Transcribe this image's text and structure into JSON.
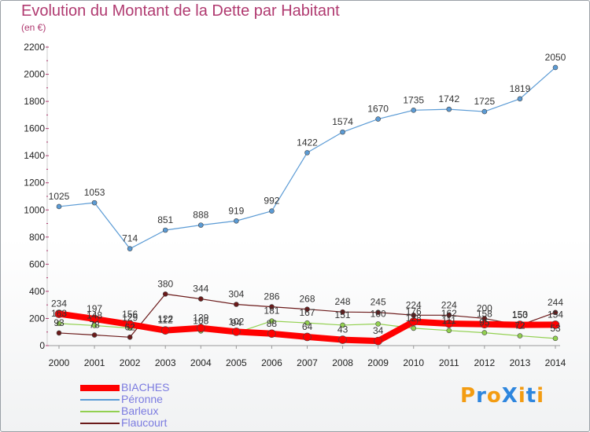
{
  "title": "Evolution du Montant de la Dette par Habitant",
  "subtitle": "(en €)",
  "logo": "ProXiti",
  "colors": {
    "title": "#b03a70",
    "BIACHES": "#ff0000",
    "Péronne": "#5b9bd5",
    "Barleux": "#92d050",
    "Flaucourt": "#6b1a1a"
  },
  "chart_data": {
    "type": "line",
    "title": "Evolution du Montant de la Dette par Habitant",
    "ylabel": "(en €)",
    "x": [
      2000,
      2001,
      2002,
      2003,
      2004,
      2005,
      2006,
      2007,
      2008,
      2009,
      2010,
      2011,
      2012,
      2013,
      2014
    ],
    "ylim": [
      0,
      2200
    ],
    "yticks": [
      0,
      200,
      400,
      600,
      800,
      1000,
      1200,
      1400,
      1600,
      1800,
      2000,
      2200
    ],
    "grid": false,
    "legend": "bottom-left",
    "series": [
      {
        "name": "BIACHES",
        "values": [
          234,
          197,
          156,
          112,
          129,
          102,
          88,
          64,
          43,
          34,
          176,
          162,
          158,
          153,
          154
        ]
      },
      {
        "name": "Péronne",
        "values": [
          1025,
          1053,
          714,
          851,
          888,
          919,
          992,
          1422,
          1574,
          1670,
          1735,
          1742,
          1725,
          1819,
          2050
        ]
      },
      {
        "name": "Barleux",
        "values": [
          163,
          148,
          129,
          122,
          108,
          94,
          181,
          167,
          151,
          160,
          128,
          111,
          95,
          72,
          53
        ]
      },
      {
        "name": "Flaucourt",
        "values": [
          93,
          78,
          62,
          380,
          344,
          304,
          286,
          268,
          248,
          245,
          224,
          224,
          200,
          150,
          244
        ]
      }
    ]
  }
}
